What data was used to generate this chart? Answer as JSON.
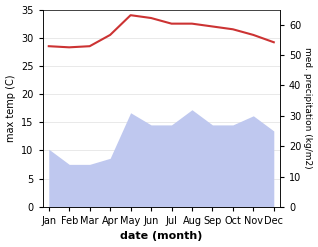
{
  "months": [
    "Jan",
    "Feb",
    "Mar",
    "Apr",
    "May",
    "Jun",
    "Jul",
    "Aug",
    "Sep",
    "Oct",
    "Nov",
    "Dec"
  ],
  "temp": [
    28.5,
    28.3,
    28.5,
    30.5,
    34.0,
    33.5,
    32.5,
    32.5,
    32.0,
    31.5,
    30.5,
    29.2
  ],
  "precip": [
    19,
    14,
    14,
    16,
    31,
    27,
    27,
    32,
    27,
    27,
    30,
    25
  ],
  "temp_color": "#cc3333",
  "precip_fill_color": "#bfc8ef",
  "precip_edge_color": "#9aa8dd",
  "ylim_left": [
    0,
    35
  ],
  "ylim_right": [
    0,
    65
  ],
  "ylabel_left": "max temp (C)",
  "ylabel_right": "med. precipitation (kg/m2)",
  "xlabel": "date (month)",
  "bg_color": "#ffffff",
  "left_yticks": [
    0,
    5,
    10,
    15,
    20,
    25,
    30,
    35
  ],
  "right_yticks": [
    0,
    10,
    20,
    30,
    40,
    50,
    60
  ]
}
